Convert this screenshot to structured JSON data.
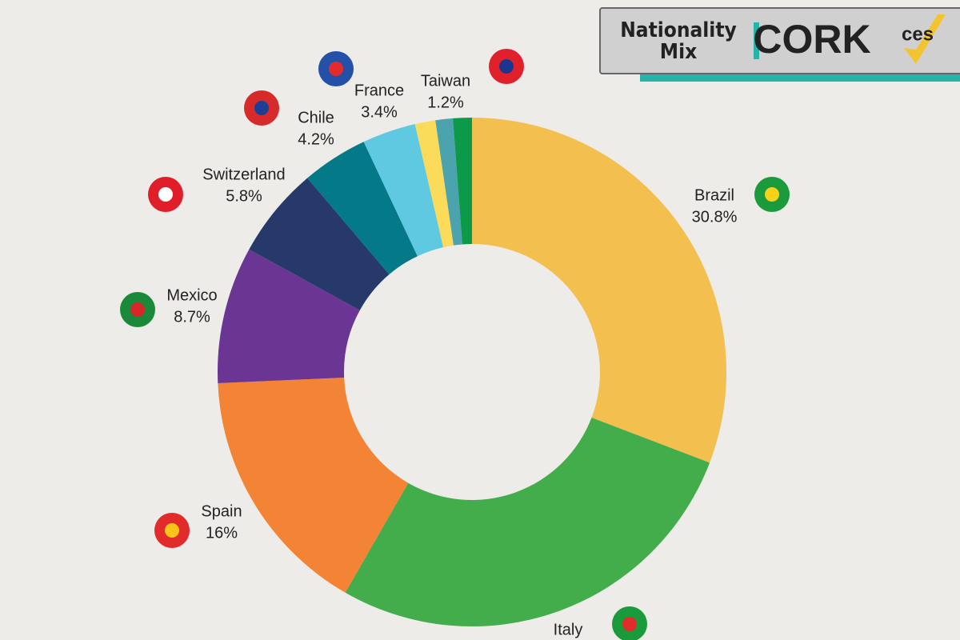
{
  "header": {
    "title": "Nationality Mix",
    "location": "CORK",
    "logo": "ces"
  },
  "chart_data": {
    "type": "donut",
    "categories": [
      "Brazil",
      "Italy",
      "Spain",
      "Mexico",
      "Switzerland",
      "Chile",
      "France",
      null,
      null,
      "Taiwan"
    ],
    "values": [
      30.8,
      27.5,
      16,
      8.7,
      5.8,
      4.2,
      3.4,
      1.3,
      1.1,
      1.2
    ],
    "value_labels": [
      "30.8%",
      null,
      "16%",
      "8.7%",
      "5.8%",
      "4.2%",
      "3.4%",
      null,
      null,
      "1.2%"
    ],
    "colors": [
      "#f3bf4f",
      "#43ad4c",
      "#f38335",
      "#6b3594",
      "#27386a",
      "#047a89",
      "#5ec9e0",
      "#fbdb5a",
      "#4aa3ad",
      "#0c9a48"
    ]
  }
}
